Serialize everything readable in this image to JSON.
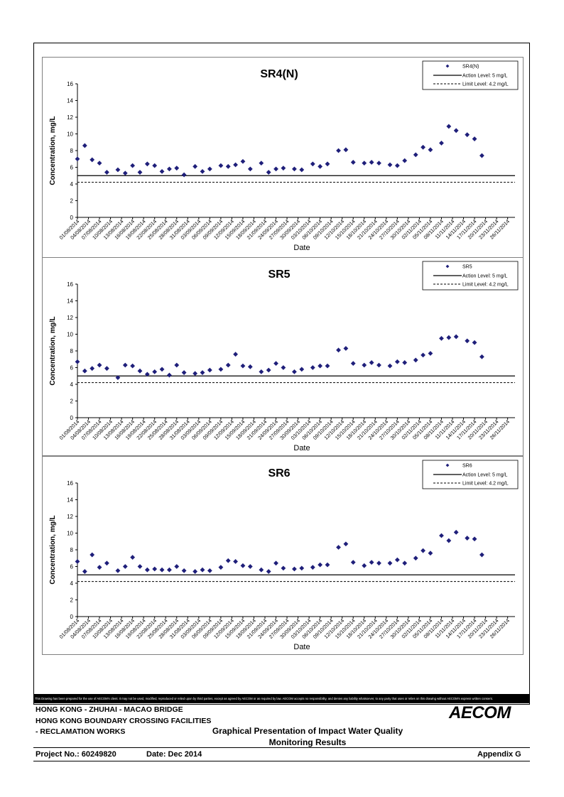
{
  "chart_data": [
    {
      "type": "scatter",
      "title": "SR4(N)",
      "xlabel": "Date",
      "ylabel": "Concentration, mg/L",
      "ylim": [
        0,
        16
      ],
      "yticks": [
        0,
        2,
        4,
        6,
        8,
        10,
        12,
        14,
        16
      ],
      "xlim": [
        "01/08/2014",
        "28/11/2014"
      ],
      "xticks": [
        "01/08/2014",
        "04/08/2014",
        "07/08/2014",
        "10/08/2014",
        "13/08/2014",
        "16/08/2014",
        "19/08/2014",
        "22/08/2014",
        "25/08/2014",
        "28/08/2014",
        "31/08/2014",
        "03/09/2014",
        "06/09/2014",
        "09/09/2014",
        "12/09/2014",
        "15/09/2014",
        "18/09/2014",
        "21/09/2014",
        "24/09/2014",
        "27/09/2014",
        "30/09/2014",
        "03/10/2014",
        "06/10/2014",
        "09/10/2014",
        "12/10/2014",
        "15/10/2014",
        "18/10/2014",
        "21/10/2014",
        "24/10/2014",
        "27/10/2014",
        "30/10/2014",
        "02/11/2014",
        "05/11/2014",
        "08/11/2014",
        "11/11/2014",
        "14/11/2014",
        "17/11/2014",
        "20/11/2014",
        "23/11/2014",
        "26/11/2014"
      ],
      "legend_position": "top-right",
      "legend": [
        "SR4(N)",
        "Action Level: 5 mg/L",
        "Limit Level: 4.2 mg/L"
      ],
      "action_level": 5,
      "limit_level": 4.2,
      "series_color": "#1F1F7A",
      "series": [
        {
          "name": "SR4(N)",
          "points": [
            [
              "01/08/2014",
              7.0
            ],
            [
              "03/08/2014",
              8.6
            ],
            [
              "05/08/2014",
              6.9
            ],
            [
              "07/08/2014",
              6.5
            ],
            [
              "09/08/2014",
              5.4
            ],
            [
              "12/08/2014",
              5.7
            ],
            [
              "14/08/2014",
              5.3
            ],
            [
              "16/08/2014",
              6.2
            ],
            [
              "18/08/2014",
              5.4
            ],
            [
              "20/08/2014",
              6.4
            ],
            [
              "22/08/2014",
              6.2
            ],
            [
              "24/08/2014",
              5.5
            ],
            [
              "26/08/2014",
              5.8
            ],
            [
              "28/08/2014",
              5.9
            ],
            [
              "30/08/2014",
              5.1
            ],
            [
              "02/09/2014",
              6.1
            ],
            [
              "04/09/2014",
              5.5
            ],
            [
              "06/09/2014",
              5.8
            ],
            [
              "09/09/2014",
              6.2
            ],
            [
              "11/09/2014",
              6.1
            ],
            [
              "13/09/2014",
              6.3
            ],
            [
              "15/09/2014",
              6.7
            ],
            [
              "17/09/2014",
              5.8
            ],
            [
              "20/09/2014",
              6.5
            ],
            [
              "22/09/2014",
              5.4
            ],
            [
              "24/09/2014",
              5.8
            ],
            [
              "26/09/2014",
              5.9
            ],
            [
              "29/09/2014",
              5.8
            ],
            [
              "01/10/2014",
              5.7
            ],
            [
              "04/10/2014",
              6.4
            ],
            [
              "06/10/2014",
              6.1
            ],
            [
              "08/10/2014",
              6.4
            ],
            [
              "11/10/2014",
              8.0
            ],
            [
              "13/10/2014",
              8.1
            ],
            [
              "15/10/2014",
              6.6
            ],
            [
              "18/10/2014",
              6.5
            ],
            [
              "20/10/2014",
              6.6
            ],
            [
              "22/10/2014",
              6.5
            ],
            [
              "25/10/2014",
              6.3
            ],
            [
              "27/10/2014",
              6.2
            ],
            [
              "29/10/2014",
              6.8
            ],
            [
              "01/11/2014",
              7.5
            ],
            [
              "03/11/2014",
              8.4
            ],
            [
              "05/11/2014",
              8.1
            ],
            [
              "08/11/2014",
              8.9
            ],
            [
              "10/11/2014",
              10.9
            ],
            [
              "12/11/2014",
              10.4
            ],
            [
              "15/11/2014",
              9.9
            ],
            [
              "17/11/2014",
              9.4
            ],
            [
              "19/11/2014",
              7.4
            ]
          ]
        }
      ]
    },
    {
      "type": "scatter",
      "title": "SR5",
      "xlabel": "Date",
      "ylabel": "Concentration, mg/L",
      "ylim": [
        0,
        16
      ],
      "yticks": [
        0,
        2,
        4,
        6,
        8,
        10,
        12,
        14,
        16
      ],
      "xlim": [
        "01/08/2014",
        "28/11/2014"
      ],
      "xticks": [
        "01/08/2014",
        "04/08/2014",
        "07/08/2014",
        "10/08/2014",
        "13/08/2014",
        "16/08/2014",
        "19/08/2014",
        "22/08/2014",
        "25/08/2014",
        "28/08/2014",
        "31/08/2014",
        "03/09/2014",
        "06/09/2014",
        "09/09/2014",
        "12/09/2014",
        "15/09/2014",
        "18/09/2014",
        "21/09/2014",
        "24/09/2014",
        "27/09/2014",
        "30/09/2014",
        "03/10/2014",
        "06/10/2014",
        "09/10/2014",
        "12/10/2014",
        "15/10/2014",
        "18/10/2014",
        "21/10/2014",
        "24/10/2014",
        "27/10/2014",
        "30/10/2014",
        "02/11/2014",
        "05/11/2014",
        "08/11/2014",
        "11/11/2014",
        "14/11/2014",
        "17/11/2014",
        "20/11/2014",
        "23/11/2014",
        "26/11/2014"
      ],
      "legend_position": "top-right",
      "legend": [
        "SR5",
        "Action Level: 5 mg/L",
        "Limit Level: 4.2 mg/L"
      ],
      "action_level": 5,
      "limit_level": 4.2,
      "series_color": "#1F1F7A",
      "series": [
        {
          "name": "SR5",
          "points": [
            [
              "01/08/2014",
              6.7
            ],
            [
              "03/08/2014",
              5.6
            ],
            [
              "05/08/2014",
              5.9
            ],
            [
              "07/08/2014",
              6.3
            ],
            [
              "09/08/2014",
              5.9
            ],
            [
              "12/08/2014",
              4.8
            ],
            [
              "14/08/2014",
              6.3
            ],
            [
              "16/08/2014",
              6.2
            ],
            [
              "18/08/2014",
              5.6
            ],
            [
              "20/08/2014",
              5.2
            ],
            [
              "22/08/2014",
              5.5
            ],
            [
              "24/08/2014",
              5.8
            ],
            [
              "26/08/2014",
              5.1
            ],
            [
              "28/08/2014",
              6.3
            ],
            [
              "30/08/2014",
              5.4
            ],
            [
              "02/09/2014",
              5.3
            ],
            [
              "04/09/2014",
              5.4
            ],
            [
              "06/09/2014",
              5.7
            ],
            [
              "09/09/2014",
              5.8
            ],
            [
              "11/09/2014",
              6.3
            ],
            [
              "13/09/2014",
              7.6
            ],
            [
              "15/09/2014",
              6.2
            ],
            [
              "17/09/2014",
              6.1
            ],
            [
              "20/09/2014",
              5.5
            ],
            [
              "22/09/2014",
              5.7
            ],
            [
              "24/09/2014",
              6.5
            ],
            [
              "26/09/2014",
              6.0
            ],
            [
              "29/09/2014",
              5.5
            ],
            [
              "01/10/2014",
              5.8
            ],
            [
              "04/10/2014",
              6.0
            ],
            [
              "06/10/2014",
              6.2
            ],
            [
              "08/10/2014",
              6.2
            ],
            [
              "11/10/2014",
              8.1
            ],
            [
              "13/10/2014",
              8.3
            ],
            [
              "15/10/2014",
              6.5
            ],
            [
              "18/10/2014",
              6.3
            ],
            [
              "20/10/2014",
              6.6
            ],
            [
              "22/10/2014",
              6.3
            ],
            [
              "25/10/2014",
              6.2
            ],
            [
              "27/10/2014",
              6.7
            ],
            [
              "29/10/2014",
              6.6
            ],
            [
              "01/11/2014",
              6.9
            ],
            [
              "03/11/2014",
              7.5
            ],
            [
              "05/11/2014",
              7.7
            ],
            [
              "08/11/2014",
              9.5
            ],
            [
              "10/11/2014",
              9.6
            ],
            [
              "12/11/2014",
              9.7
            ],
            [
              "15/11/2014",
              9.2
            ],
            [
              "17/11/2014",
              9.0
            ],
            [
              "19/11/2014",
              7.3
            ]
          ]
        }
      ]
    },
    {
      "type": "scatter",
      "title": "SR6",
      "xlabel": "Date",
      "ylabel": "Concentration, mg/L",
      "ylim": [
        0,
        16
      ],
      "yticks": [
        0,
        2,
        4,
        6,
        8,
        10,
        12,
        14,
        16
      ],
      "xlim": [
        "01/08/2014",
        "28/11/2014"
      ],
      "xticks": [
        "01/08/2014",
        "04/08/2014",
        "07/08/2014",
        "10/08/2014",
        "13/08/2014",
        "16/08/2014",
        "19/08/2014",
        "22/08/2014",
        "25/08/2014",
        "28/08/2014",
        "31/08/2014",
        "03/09/2014",
        "06/09/2014",
        "09/09/2014",
        "12/09/2014",
        "15/09/2014",
        "18/09/2014",
        "21/09/2014",
        "24/09/2014",
        "27/09/2014",
        "30/09/2014",
        "03/10/2014",
        "06/10/2014",
        "09/10/2014",
        "12/10/2014",
        "15/10/2014",
        "18/10/2014",
        "21/10/2014",
        "24/10/2014",
        "27/10/2014",
        "30/10/2014",
        "02/11/2014",
        "05/11/2014",
        "08/11/2014",
        "11/11/2014",
        "14/11/2014",
        "17/11/2014",
        "20/11/2014",
        "23/11/2014",
        "26/11/2014"
      ],
      "legend_position": "top-right",
      "legend": [
        "SR6",
        "Action Level: 5 mg/L",
        "Limit Level: 4.2 mg/L"
      ],
      "action_level": 5,
      "limit_level": 4.2,
      "series_color": "#1F1F7A",
      "series": [
        {
          "name": "SR6",
          "points": [
            [
              "01/08/2014",
              6.6
            ],
            [
              "03/08/2014",
              5.4
            ],
            [
              "05/08/2014",
              7.4
            ],
            [
              "07/08/2014",
              5.9
            ],
            [
              "09/08/2014",
              6.4
            ],
            [
              "12/08/2014",
              5.5
            ],
            [
              "14/08/2014",
              6.0
            ],
            [
              "16/08/2014",
              7.1
            ],
            [
              "18/08/2014",
              6.0
            ],
            [
              "20/08/2014",
              5.6
            ],
            [
              "22/08/2014",
              5.7
            ],
            [
              "24/08/2014",
              5.6
            ],
            [
              "26/08/2014",
              5.6
            ],
            [
              "28/08/2014",
              6.0
            ],
            [
              "30/08/2014",
              5.5
            ],
            [
              "02/09/2014",
              5.4
            ],
            [
              "04/09/2014",
              5.6
            ],
            [
              "06/09/2014",
              5.5
            ],
            [
              "09/09/2014",
              5.9
            ],
            [
              "11/09/2014",
              6.7
            ],
            [
              "13/09/2014",
              6.6
            ],
            [
              "15/09/2014",
              6.1
            ],
            [
              "17/09/2014",
              6.0
            ],
            [
              "20/09/2014",
              5.6
            ],
            [
              "22/09/2014",
              5.4
            ],
            [
              "24/09/2014",
              6.4
            ],
            [
              "26/09/2014",
              5.8
            ],
            [
              "29/09/2014",
              5.7
            ],
            [
              "01/10/2014",
              5.8
            ],
            [
              "04/10/2014",
              5.9
            ],
            [
              "06/10/2014",
              6.2
            ],
            [
              "08/10/2014",
              6.2
            ],
            [
              "11/10/2014",
              8.3
            ],
            [
              "13/10/2014",
              8.7
            ],
            [
              "15/10/2014",
              6.5
            ],
            [
              "18/10/2014",
              6.1
            ],
            [
              "20/10/2014",
              6.5
            ],
            [
              "22/10/2014",
              6.4
            ],
            [
              "25/10/2014",
              6.4
            ],
            [
              "27/10/2014",
              6.8
            ],
            [
              "29/10/2014",
              6.4
            ],
            [
              "01/11/2014",
              7.0
            ],
            [
              "03/11/2014",
              7.9
            ],
            [
              "05/11/2014",
              7.6
            ],
            [
              "08/11/2014",
              9.7
            ],
            [
              "10/11/2014",
              9.1
            ],
            [
              "12/11/2014",
              10.1
            ],
            [
              "15/11/2014",
              9.4
            ],
            [
              "17/11/2014",
              9.3
            ],
            [
              "19/11/2014",
              7.4
            ]
          ]
        }
      ]
    }
  ],
  "footer": {
    "disclaimer": "This Drawing has been prepared for the use of AECOM's client. It may not be used, modified, reproduced or relied upon by third parties, except as agreed by AECOM or as required by law. AECOM accepts no responsibility, and denies any liability whatsoever, to any party that uses or relies on this drawing without AECOM's express written consent.",
    "project_line1": "HONG KONG - ZHUHAI - MACAO BRIDGE",
    "project_line2": "HONG KONG BOUNDARY CROSSING FACILITIES",
    "project_line3": "- RECLAMATION WORKS",
    "subtitle_line1": "Graphical Presentation of Impact Water Quality",
    "subtitle_line2": "Monitoring Results",
    "logo": "AECOM",
    "project_no": "Project No.: 60249820",
    "date": "Date: Dec 2014",
    "appendix": "Appendix G"
  }
}
